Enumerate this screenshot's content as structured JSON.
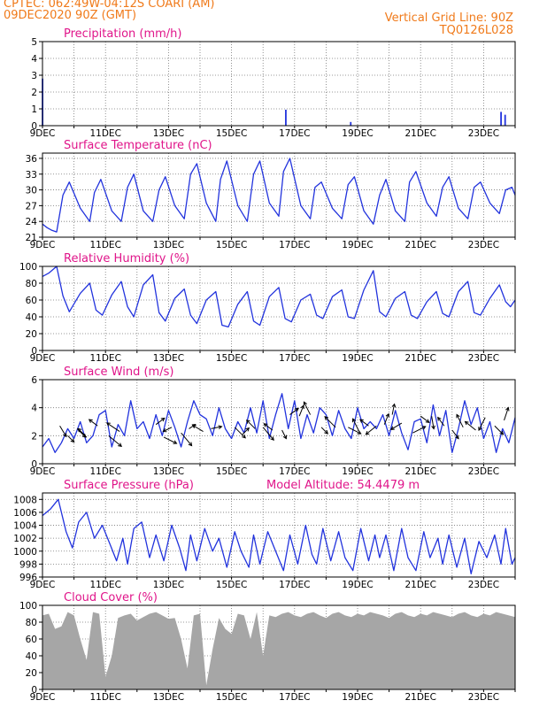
{
  "header": {
    "left_line1": "CPTEC:   062:49W-04:12S   COARI (AM)",
    "left_line2": "09DEC2020 90Z (GMT)",
    "right_line1": "Vertical Grid Line: 90Z",
    "right_line2": "TQ0126L028"
  },
  "x_ticks": [
    "9DEC",
    "11DEC",
    "13DEC",
    "15DEC",
    "17DEC",
    "19DEC",
    "21DEC",
    "23DEC"
  ],
  "x_day_start": 9,
  "x_day_end": 24,
  "colors": {
    "header": "#f07a1a",
    "title": "#e0158a",
    "line": "#2233dd",
    "cloud": "#a6a6a6",
    "wind": "#000000"
  },
  "chart_data": [
    {
      "type": "bar",
      "title": "Precipitation (mm/h)",
      "ylim": [
        0,
        5
      ],
      "yticks": [
        0,
        1,
        2,
        3,
        4,
        5
      ],
      "x": [
        9.0,
        16.72,
        18.78,
        23.55,
        23.68
      ],
      "values": [
        2.8,
        0.95,
        0.22,
        0.82,
        0.65
      ]
    },
    {
      "type": "line",
      "title": "Surface Temperature (nC)",
      "ylim": [
        21,
        37
      ],
      "yticks": [
        21,
        24,
        27,
        30,
        33,
        36
      ],
      "x": [
        9.0,
        9.15,
        9.3,
        9.45,
        9.65,
        9.85,
        10.2,
        10.5,
        10.65,
        10.85,
        11.2,
        11.5,
        11.7,
        11.9,
        12.2,
        12.5,
        12.7,
        12.9,
        13.2,
        13.5,
        13.7,
        13.9,
        14.2,
        14.5,
        14.65,
        14.85,
        15.2,
        15.5,
        15.7,
        15.9,
        16.2,
        16.5,
        16.65,
        16.85,
        17.2,
        17.5,
        17.65,
        17.85,
        18.2,
        18.5,
        18.7,
        18.9,
        19.2,
        19.5,
        19.7,
        19.9,
        20.2,
        20.5,
        20.65,
        20.85,
        21.2,
        21.5,
        21.7,
        21.9,
        22.2,
        22.5,
        22.7,
        22.9,
        23.2,
        23.5,
        23.7,
        23.9,
        24.0
      ],
      "values": [
        23.5,
        22.8,
        22.3,
        22.0,
        29.0,
        31.5,
        26.5,
        24.0,
        29.5,
        32.0,
        26.0,
        24.0,
        30.5,
        33.0,
        26.0,
        24.0,
        30.0,
        32.5,
        27.0,
        24.5,
        33.0,
        35.0,
        27.5,
        24.0,
        32.0,
        35.5,
        27.0,
        24.0,
        33.0,
        35.5,
        27.5,
        25.0,
        33.5,
        36.0,
        27.0,
        24.5,
        30.5,
        31.5,
        26.5,
        24.5,
        31.0,
        32.5,
        26.0,
        23.5,
        29.0,
        32.0,
        26.0,
        24.0,
        31.5,
        33.5,
        27.5,
        25.0,
        30.5,
        32.5,
        26.5,
        24.5,
        30.5,
        31.5,
        27.5,
        25.5,
        30.0,
        30.5,
        29.0
      ]
    },
    {
      "type": "line",
      "title": "Relative Humidity (%)",
      "ylim": [
        0,
        100
      ],
      "yticks": [
        0,
        20,
        40,
        60,
        80,
        100
      ],
      "x": [
        9.0,
        9.2,
        9.45,
        9.65,
        9.85,
        10.2,
        10.5,
        10.7,
        10.9,
        11.2,
        11.5,
        11.7,
        11.9,
        12.2,
        12.5,
        12.7,
        12.9,
        13.2,
        13.5,
        13.7,
        13.9,
        14.2,
        14.5,
        14.7,
        14.9,
        15.2,
        15.5,
        15.7,
        15.9,
        16.2,
        16.5,
        16.7,
        16.9,
        17.2,
        17.5,
        17.7,
        17.9,
        18.2,
        18.5,
        18.7,
        18.9,
        19.2,
        19.5,
        19.7,
        19.9,
        20.2,
        20.5,
        20.7,
        20.9,
        21.2,
        21.5,
        21.7,
        21.9,
        22.2,
        22.5,
        22.7,
        22.9,
        23.2,
        23.5,
        23.7,
        23.85,
        24.0
      ],
      "values": [
        88,
        92,
        100,
        65,
        46,
        68,
        80,
        48,
        42,
        66,
        82,
        52,
        40,
        78,
        90,
        45,
        35,
        62,
        73,
        42,
        32,
        60,
        70,
        30,
        28,
        55,
        70,
        35,
        30,
        64,
        75,
        38,
        34,
        60,
        67,
        42,
        38,
        64,
        72,
        40,
        38,
        72,
        95,
        46,
        40,
        62,
        70,
        42,
        38,
        58,
        70,
        44,
        40,
        70,
        82,
        45,
        42,
        62,
        78,
        58,
        52,
        60
      ]
    },
    {
      "type": "line",
      "title": "Surface Wind (m/s)",
      "ylim": [
        0,
        6
      ],
      "yticks": [
        0,
        2,
        4,
        6
      ],
      "x": [
        9.0,
        9.2,
        9.4,
        9.6,
        9.8,
        10.0,
        10.2,
        10.4,
        10.6,
        10.8,
        11.0,
        11.2,
        11.4,
        11.6,
        11.8,
        12.0,
        12.2,
        12.4,
        12.6,
        12.8,
        13.0,
        13.2,
        13.4,
        13.6,
        13.8,
        14.0,
        14.2,
        14.4,
        14.6,
        14.8,
        15.0,
        15.2,
        15.4,
        15.6,
        15.8,
        16.0,
        16.2,
        16.4,
        16.6,
        16.8,
        17.0,
        17.2,
        17.4,
        17.6,
        17.8,
        18.0,
        18.2,
        18.4,
        18.6,
        18.8,
        19.0,
        19.2,
        19.4,
        19.6,
        19.8,
        20.0,
        20.2,
        20.4,
        20.6,
        20.8,
        21.0,
        21.2,
        21.4,
        21.6,
        21.8,
        22.0,
        22.2,
        22.4,
        22.6,
        22.8,
        23.0,
        23.2,
        23.4,
        23.6,
        23.8,
        24.0
      ],
      "values": [
        1.2,
        1.8,
        0.8,
        1.5,
        2.5,
        1.8,
        3.0,
        1.5,
        2.0,
        3.5,
        3.8,
        1.2,
        2.8,
        2.0,
        4.5,
        2.5,
        3.0,
        1.8,
        3.5,
        2.0,
        3.8,
        2.6,
        1.2,
        3.0,
        4.5,
        3.5,
        3.2,
        2.0,
        4.0,
        2.5,
        1.8,
        3.0,
        2.2,
        4.0,
        2.2,
        4.5,
        1.8,
        3.5,
        5.0,
        2.5,
        4.5,
        1.8,
        3.5,
        2.2,
        4.0,
        3.5,
        2.0,
        3.8,
        2.5,
        1.8,
        4.0,
        2.5,
        3.0,
        2.5,
        3.5,
        2.0,
        3.8,
        2.2,
        1.0,
        3.0,
        3.2,
        1.5,
        4.2,
        2.0,
        3.8,
        0.8,
        2.5,
        4.5,
        2.8,
        4.0,
        1.8,
        3.0,
        0.8,
        2.5,
        1.5,
        3.3
      ]
    },
    {
      "type": "line",
      "title": "Surface Pressure (hPa)",
      "annotation": "Model Altitude: 54.4479 m",
      "ylim": [
        996,
        1009
      ],
      "yticks": [
        996,
        998,
        1000,
        1002,
        1004,
        1006,
        1008
      ],
      "x": [
        9.0,
        9.25,
        9.5,
        9.75,
        9.95,
        10.15,
        10.4,
        10.65,
        10.9,
        11.15,
        11.35,
        11.55,
        11.7,
        11.9,
        12.15,
        12.4,
        12.6,
        12.85,
        13.1,
        13.35,
        13.55,
        13.7,
        13.9,
        14.15,
        14.4,
        14.6,
        14.85,
        15.1,
        15.3,
        15.55,
        15.7,
        15.9,
        16.15,
        16.4,
        16.65,
        16.85,
        17.1,
        17.35,
        17.55,
        17.7,
        17.9,
        18.15,
        18.4,
        18.6,
        18.85,
        19.1,
        19.35,
        19.55,
        19.7,
        19.9,
        20.15,
        20.4,
        20.6,
        20.85,
        21.1,
        21.3,
        21.55,
        21.7,
        21.9,
        22.15,
        22.4,
        22.6,
        22.85,
        23.1,
        23.35,
        23.55,
        23.7,
        23.9,
        24.0
      ],
      "values": [
        1005.5,
        1006.5,
        1008.0,
        1003.0,
        1000.5,
        1004.5,
        1006.0,
        1002.0,
        1004.0,
        1001.0,
        998.5,
        1002.0,
        998.0,
        1003.5,
        1004.5,
        999.0,
        1002.5,
        998.5,
        1004.0,
        1000.5,
        997.0,
        1002.5,
        998.5,
        1003.5,
        1000.0,
        1002.0,
        997.5,
        1003.0,
        1000.0,
        997.5,
        1002.5,
        998.0,
        1003.0,
        1000.0,
        997.0,
        1002.5,
        998.0,
        1004.0,
        999.5,
        998.0,
        1003.5,
        998.5,
        1003.0,
        999.0,
        997.0,
        1003.5,
        998.5,
        1002.5,
        999.0,
        1002.5,
        997.0,
        1003.5,
        999.0,
        997.0,
        1003.0,
        999.0,
        1002.0,
        998.0,
        1002.5,
        997.5,
        1002.0,
        996.5,
        1001.5,
        999.0,
        1002.5,
        998.0,
        1003.5,
        998.0,
        999.0
      ]
    },
    {
      "type": "area",
      "title": "Cloud Cover (%)",
      "ylim": [
        0,
        100
      ],
      "yticks": [
        0,
        20,
        40,
        60,
        80,
        100
      ],
      "x": [
        9.0,
        9.2,
        9.4,
        9.6,
        9.8,
        10.0,
        10.2,
        10.4,
        10.6,
        10.8,
        11.0,
        11.2,
        11.4,
        11.6,
        11.8,
        12.0,
        12.2,
        12.4,
        12.6,
        12.8,
        13.0,
        13.2,
        13.4,
        13.6,
        13.8,
        14.0,
        14.2,
        14.4,
        14.6,
        14.8,
        15.0,
        15.2,
        15.4,
        15.6,
        15.8,
        16.0,
        16.2,
        16.4,
        16.6,
        16.8,
        17.0,
        17.2,
        17.4,
        17.6,
        17.8,
        18.0,
        18.2,
        18.4,
        18.6,
        18.8,
        19.0,
        19.2,
        19.4,
        19.6,
        19.8,
        20.0,
        20.2,
        20.4,
        20.6,
        20.8,
        21.0,
        21.2,
        21.4,
        21.6,
        21.8,
        22.0,
        22.2,
        22.4,
        22.6,
        22.8,
        23.0,
        23.2,
        23.4,
        23.6,
        23.8,
        24.0
      ],
      "values": [
        88,
        90,
        72,
        75,
        92,
        88,
        60,
        35,
        92,
        90,
        15,
        40,
        85,
        88,
        90,
        82,
        86,
        90,
        92,
        88,
        84,
        85,
        60,
        25,
        88,
        90,
        5,
        48,
        85,
        72,
        66,
        90,
        88,
        60,
        92,
        40,
        88,
        86,
        90,
        92,
        88,
        86,
        90,
        92,
        88,
        85,
        90,
        92,
        88,
        86,
        90,
        88,
        92,
        90,
        88,
        85,
        90,
        92,
        88,
        86,
        90,
        88,
        92,
        90,
        88,
        86,
        90,
        92,
        88,
        86,
        90,
        88,
        92,
        90,
        88,
        86
      ]
    }
  ],
  "wind_arrows": {
    "x": [
      9.55,
      9.8,
      10.1,
      10.4,
      10.75,
      11.1,
      11.45,
      12.6,
      12.85,
      13.1,
      13.4,
      13.65,
      14.1,
      14.35,
      15.1,
      15.35,
      15.75,
      16.0,
      16.3,
      16.6,
      16.85,
      17.15,
      17.5,
      17.85,
      18.3,
      18.7,
      19.05,
      19.35,
      19.6,
      19.85,
      20.1,
      20.4,
      20.75,
      21.0,
      21.35,
      21.75,
      22.0,
      22.35,
      22.75,
      23.05,
      23.35,
      23.65
    ],
    "y": [
      2.7,
      2.0,
      2.5,
      1.9,
      2.7,
      2.0,
      2.3,
      2.8,
      1.9,
      2.6,
      2.2,
      2.5,
      2.3,
      2.5,
      2.6,
      2.1,
      2.5,
      2.6,
      2.4,
      2.4,
      3.5,
      3.4,
      3.5,
      2.6,
      2.6,
      2.6,
      2.3,
      2.7,
      2.7,
      2.8,
      3.5,
      2.9,
      2.2,
      3.4,
      3.4,
      2.7,
      2.4,
      2.6,
      2.4,
      3.3,
      2.7,
      3.1
    ],
    "u": [
      3,
      3,
      4,
      -4,
      -4,
      6,
      -6,
      4,
      6,
      -4,
      5,
      3,
      -5,
      5,
      5,
      3,
      -4,
      5,
      -4,
      2,
      4,
      2,
      -3,
      3,
      -5,
      6,
      -3,
      -4,
      -5,
      2,
      1,
      -5,
      6,
      4,
      1,
      -3,
      3,
      -3,
      -5,
      -3,
      4,
      2
    ],
    "v": [
      -5,
      -3,
      -4,
      4,
      3,
      -5,
      4,
      3,
      -3,
      -2,
      -6,
      2,
      3,
      1,
      -5,
      3,
      4,
      -6,
      3,
      -4,
      3,
      5,
      6,
      -3,
      5,
      -3,
      6,
      3,
      -4,
      5,
      5,
      -3,
      3,
      -3,
      -6,
      4,
      -4,
      6,
      4,
      -6,
      -4,
      6
    ]
  }
}
